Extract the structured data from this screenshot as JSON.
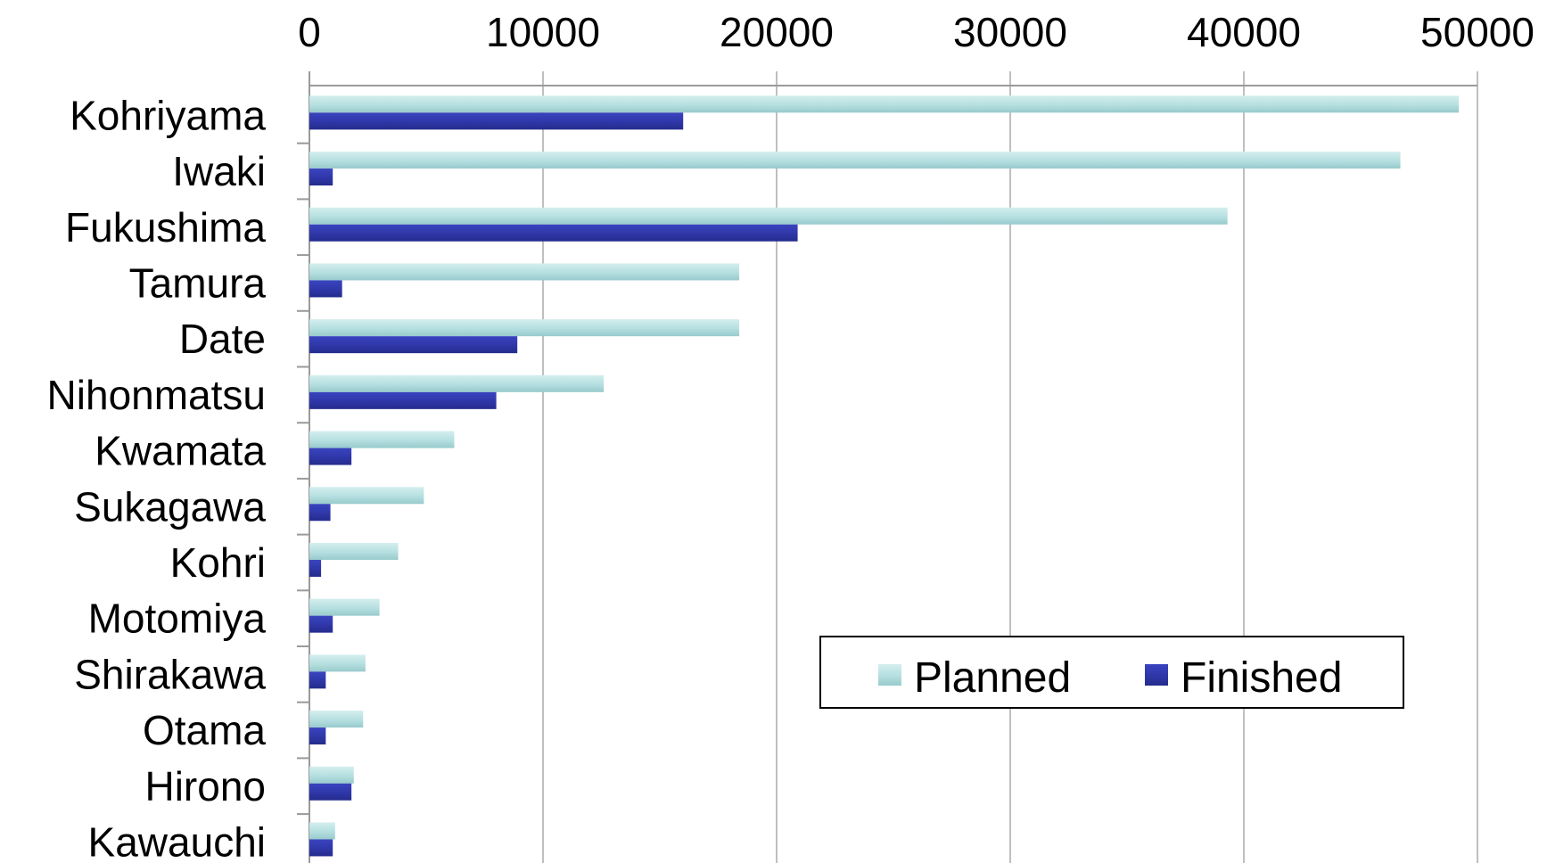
{
  "chart_data": {
    "type": "bar",
    "orientation": "horizontal",
    "categories": [
      "Kohriyama",
      "Iwaki",
      "Fukushima",
      "Tamura",
      "Date",
      "Nihonmatsu",
      "Kwamata",
      "Sukagawa",
      "Kohri",
      "Motomiya",
      "Shirakawa",
      "Otama",
      "Hirono",
      "Kawauchi"
    ],
    "series": [
      {
        "name": "Planned",
        "values": [
          49200,
          46700,
          39300,
          18400,
          18400,
          12600,
          6200,
          4900,
          3800,
          3000,
          2400,
          2300,
          1900,
          1100
        ]
      },
      {
        "name": "Finished",
        "values": [
          16000,
          1000,
          20900,
          1400,
          8900,
          8000,
          1800,
          900,
          500,
          1000,
          700,
          700,
          1800,
          1000
        ]
      }
    ],
    "xlim": [
      0,
      50000
    ],
    "xticks": [
      "0",
      "10000",
      "20000",
      "30000",
      "40000",
      "50000"
    ],
    "axis_position": "top",
    "grid": true,
    "legend_position": "bottom-right",
    "colors": {
      "Planned": "#b5dfe0",
      "Finished": "#2f37a8",
      "grid": "#bfbfbf",
      "axis": "#9a9a9a"
    }
  }
}
